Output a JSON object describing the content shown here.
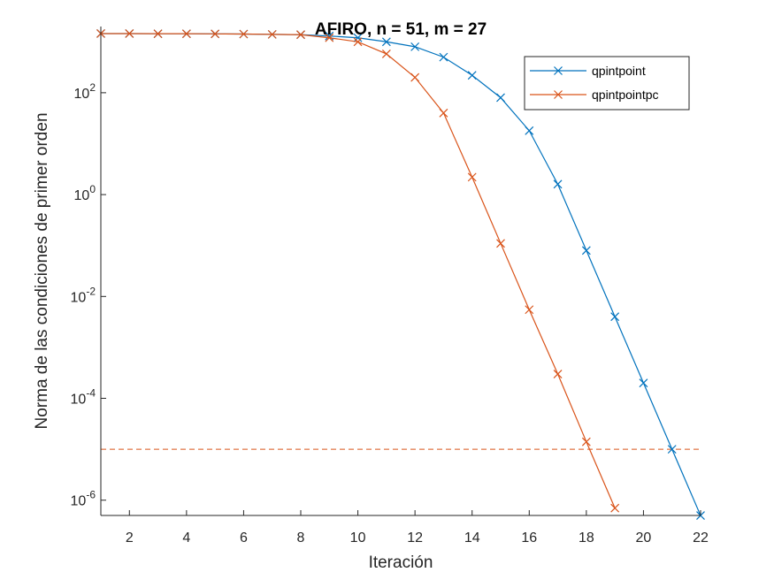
{
  "chart_data": {
    "type": "line",
    "title": "AFIRO, n = 51, m = 27",
    "xlabel": "Iteración",
    "ylabel": "Norma de las condiciones de primer orden",
    "xlim": [
      1,
      22
    ],
    "ylim_log10": [
      -6.3,
      3.3
    ],
    "yscale": "log",
    "xticks": [
      2,
      4,
      6,
      8,
      10,
      12,
      14,
      16,
      18,
      20,
      22
    ],
    "yticks": [
      {
        "exp": 2,
        "base": "10",
        "sup": "2"
      },
      {
        "exp": 0,
        "base": "10",
        "sup": "0"
      },
      {
        "exp": -2,
        "base": "10",
        "sup": "-2"
      },
      {
        "exp": -4,
        "base": "10",
        "sup": "-4"
      },
      {
        "exp": -6,
        "base": "10",
        "sup": "-6"
      }
    ],
    "grid": false,
    "legend_position": "top-right",
    "threshold": {
      "value": 1e-05,
      "color": "#d95319",
      "style": "dashed"
    },
    "series": [
      {
        "name": "qpintpoint",
        "color": "#0072bd",
        "x": [
          1,
          2,
          3,
          4,
          5,
          6,
          7,
          8,
          9,
          10,
          11,
          12,
          13,
          14,
          15,
          16,
          17,
          18,
          19,
          20,
          21,
          22
        ],
        "y": [
          1450,
          1450,
          1440,
          1440,
          1430,
          1420,
          1400,
          1380,
          1300,
          1200,
          1000,
          800,
          500,
          220,
          80,
          18,
          1.6,
          0.08,
          0.004,
          0.0002,
          1e-05,
          5e-07
        ]
      },
      {
        "name": "qpintpointpc",
        "color": "#d95319",
        "x": [
          1,
          2,
          3,
          4,
          5,
          6,
          7,
          8,
          9,
          10,
          11,
          12,
          13,
          14,
          15,
          16,
          17,
          18,
          19
        ],
        "y": [
          1450,
          1450,
          1440,
          1440,
          1430,
          1420,
          1400,
          1380,
          1200,
          1000,
          580,
          200,
          40,
          2.2,
          0.11,
          0.0055,
          0.0003,
          1.4e-05,
          7e-07
        ]
      }
    ]
  }
}
